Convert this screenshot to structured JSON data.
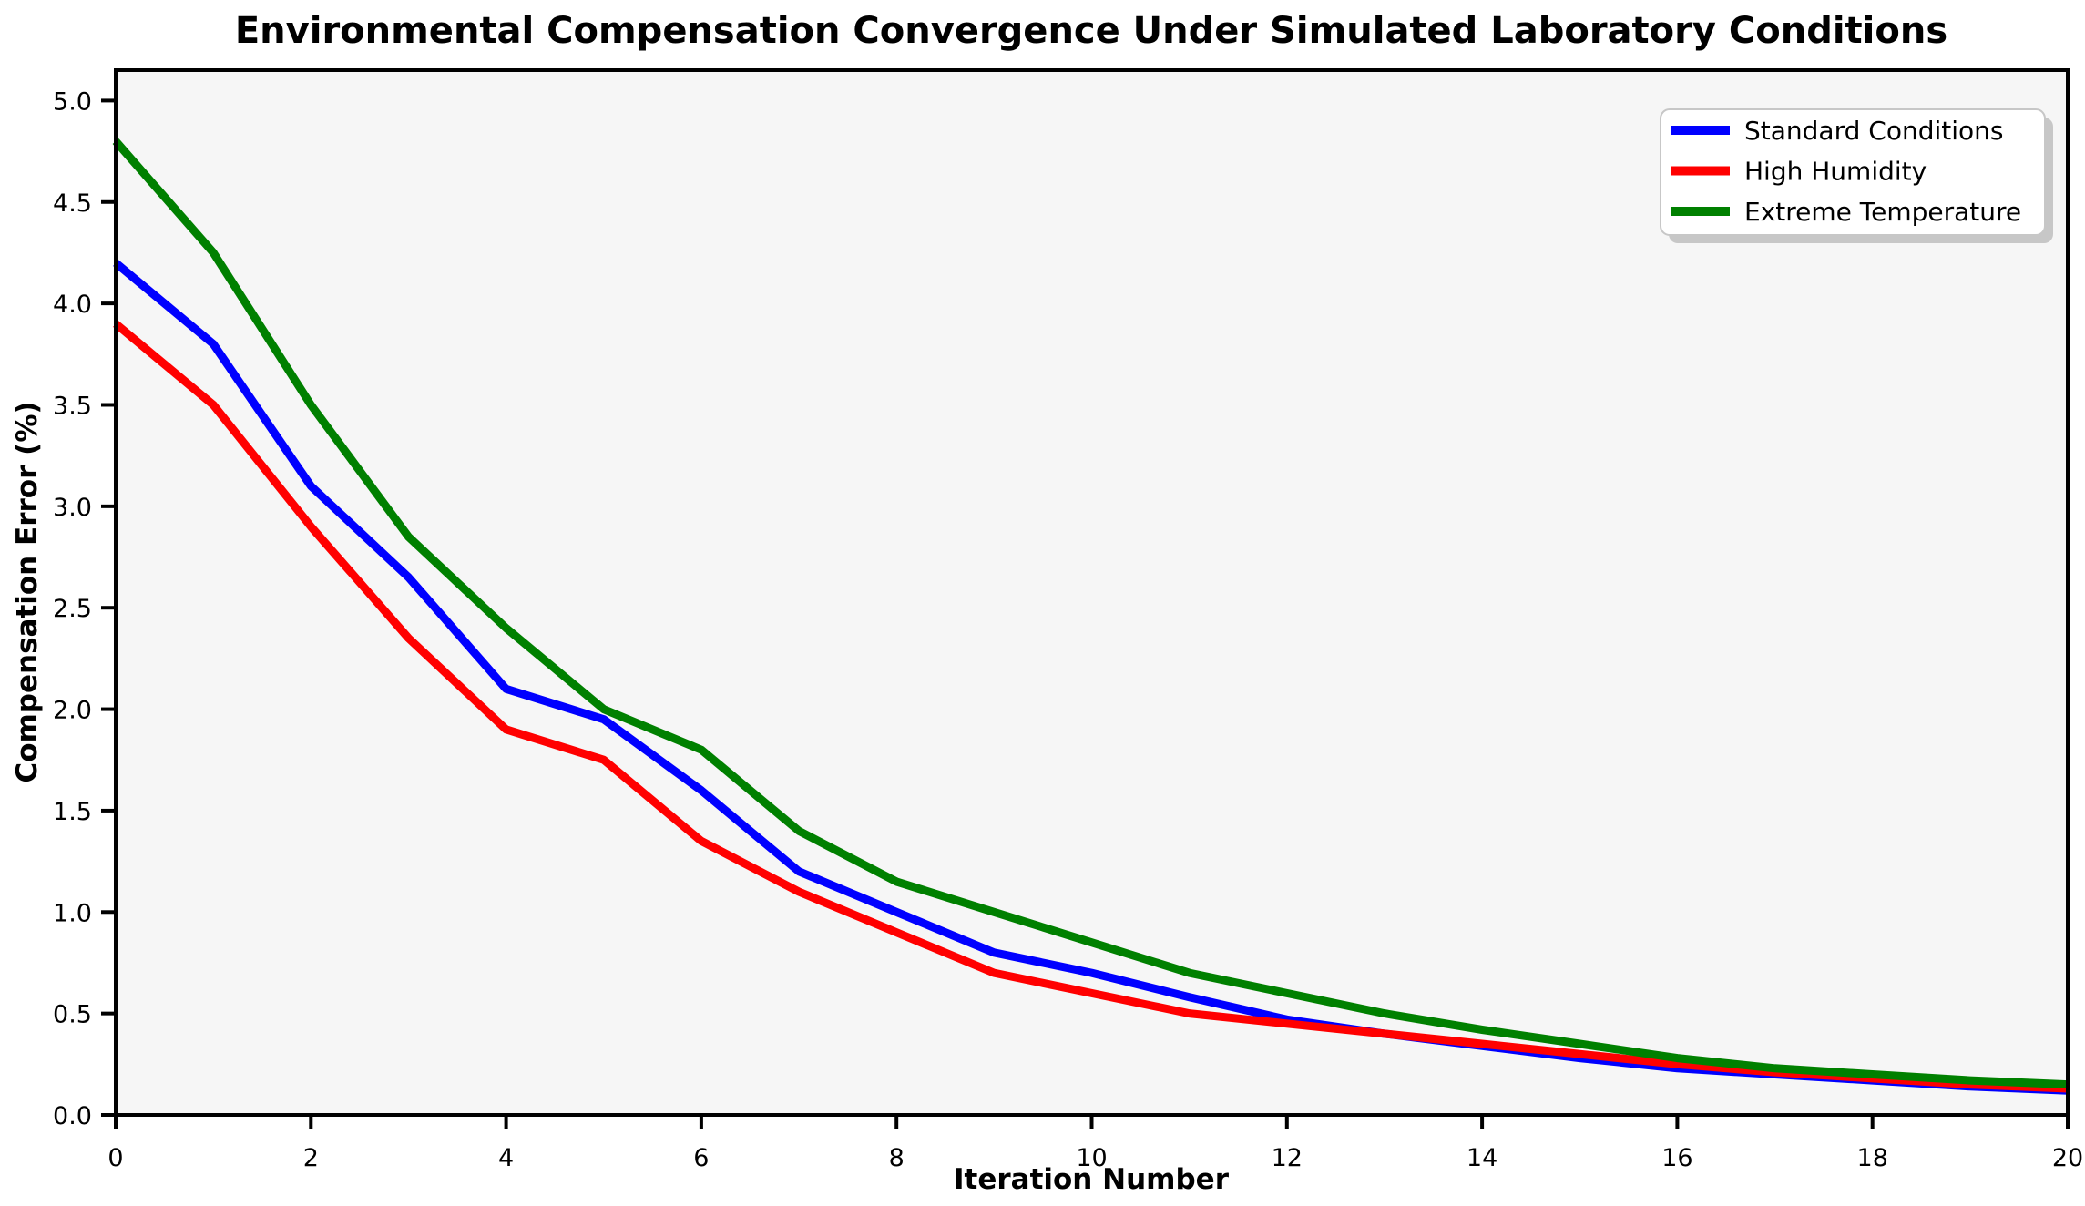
{
  "chart_data": {
    "type": "line",
    "title": "Environmental Compensation Convergence Under Simulated Laboratory Conditions",
    "xlabel": "Iteration Number",
    "ylabel": "Compensation Error (%)",
    "x": [
      0,
      1,
      2,
      3,
      4,
      5,
      6,
      7,
      8,
      9,
      10,
      11,
      12,
      13,
      14,
      15,
      16,
      17,
      18,
      19,
      20
    ],
    "series": [
      {
        "name": "Standard Conditions",
        "color": "#0000ff",
        "values": [
          4.2,
          3.8,
          3.1,
          2.65,
          2.1,
          1.95,
          1.6,
          1.2,
          1.0,
          0.8,
          0.7,
          0.58,
          0.47,
          0.4,
          0.34,
          0.28,
          0.23,
          0.2,
          0.17,
          0.14,
          0.12
        ]
      },
      {
        "name": "High Humidity",
        "color": "#ff0000",
        "values": [
          3.9,
          3.5,
          2.9,
          2.35,
          1.9,
          1.75,
          1.35,
          1.1,
          0.9,
          0.7,
          0.6,
          0.5,
          0.45,
          0.4,
          0.35,
          0.3,
          0.25,
          0.21,
          0.18,
          0.15,
          0.13
        ]
      },
      {
        "name": "Extreme Temperature",
        "color": "#008000",
        "values": [
          4.8,
          4.25,
          3.5,
          2.85,
          2.4,
          2.0,
          1.8,
          1.4,
          1.15,
          1.0,
          0.85,
          0.7,
          0.6,
          0.5,
          0.42,
          0.35,
          0.28,
          0.23,
          0.2,
          0.17,
          0.15
        ]
      }
    ],
    "xlim": [
      0,
      20
    ],
    "ylim": [
      0,
      5.15
    ],
    "xticks": [
      "0",
      "2",
      "4",
      "6",
      "8",
      "10",
      "12",
      "14",
      "16",
      "18",
      "20"
    ],
    "yticks": [
      "0.0",
      "0.5",
      "1.0",
      "1.5",
      "2.0",
      "2.5",
      "3.0",
      "3.5",
      "4.0",
      "4.5",
      "5.0"
    ],
    "grid": false,
    "legend_position": "upper right",
    "plot_background": "#f6f6f6",
    "spine_color": "#000000"
  }
}
